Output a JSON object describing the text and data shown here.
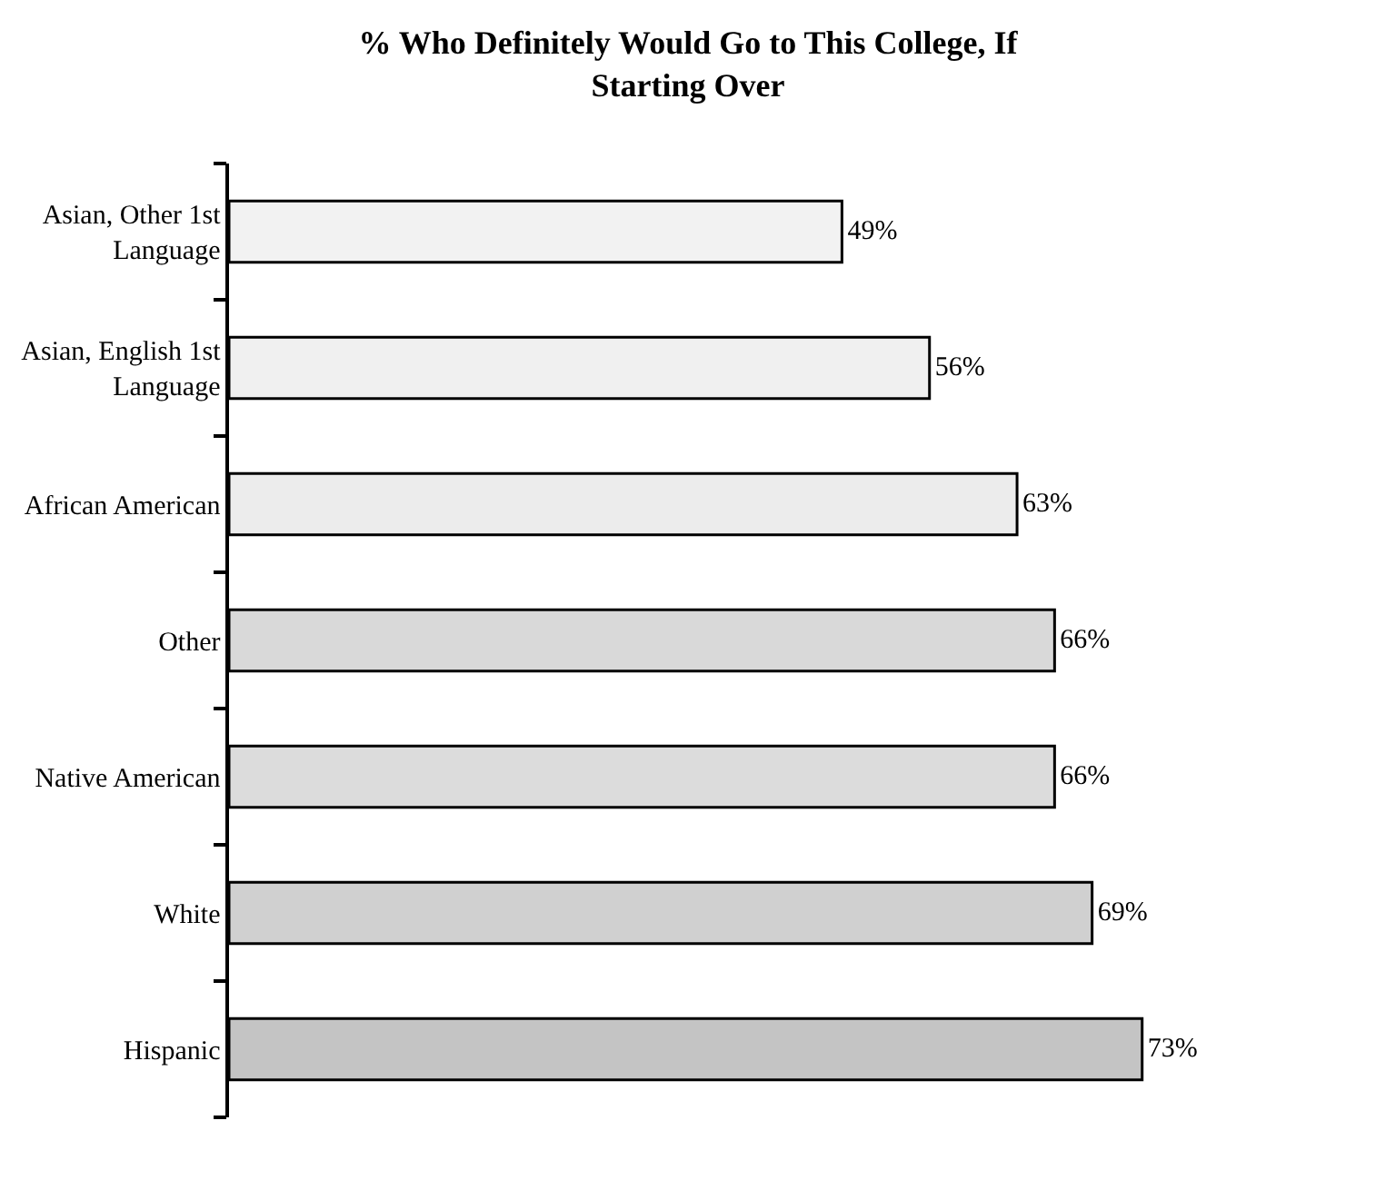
{
  "chart_data": {
    "type": "bar",
    "orientation": "horizontal",
    "title": "% Who Definitely Would Go to This College, If Starting Over",
    "categories": [
      "Asian, Other 1st Language",
      "Asian, English 1st Language",
      "African American",
      "Other",
      "Native American",
      "White",
      "Hispanic"
    ],
    "values": [
      49,
      56,
      63,
      66,
      66,
      69,
      73
    ],
    "value_labels": [
      "49%",
      "56%",
      "63%",
      "66%",
      "66%",
      "69%",
      "73%"
    ],
    "colors": [
      "#f2f2f2",
      "#f0f0f0",
      "#ececec",
      "#d9d9d9",
      "#dcdcdc",
      "#d0d0d0",
      "#c4c4c4"
    ],
    "relative": false
  }
}
